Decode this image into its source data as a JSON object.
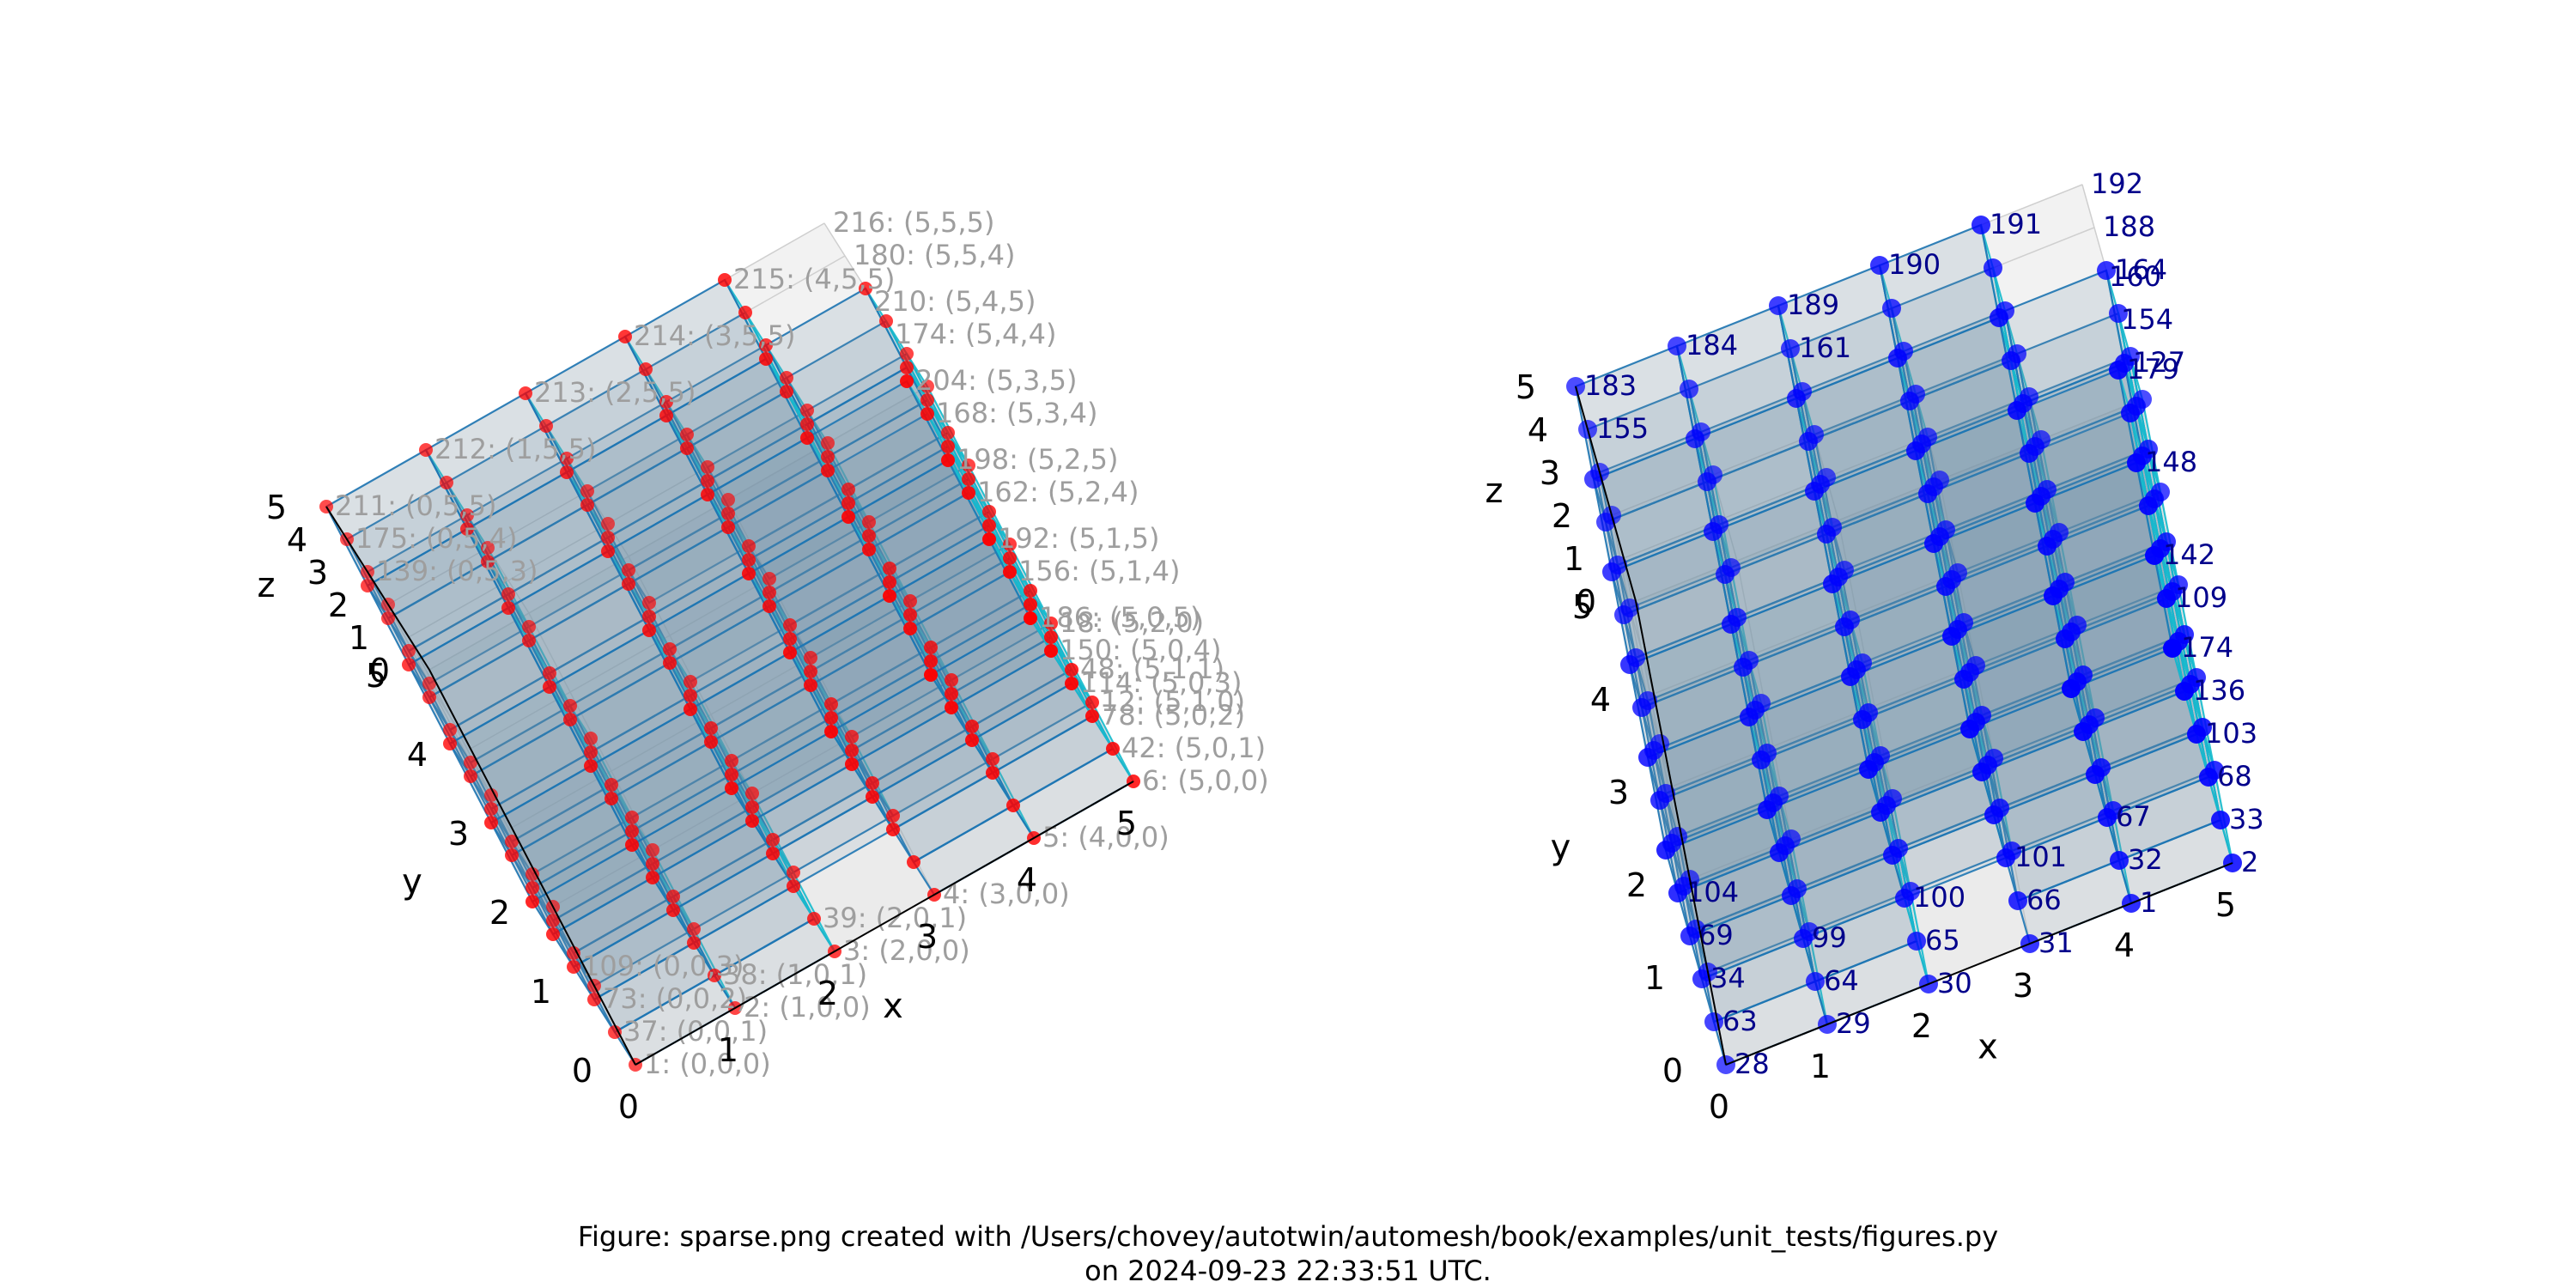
{
  "caption": {
    "line1": "Figure: sparse.png created with /Users/chovey/autotwin/automesh/book/examples/unit_tests/figures.py",
    "line2": "on 2024-09-23 22:33:51 UTC."
  },
  "colors": {
    "point_left": "#ff0000",
    "point_right": "#0000ff",
    "label_left": "#9e9e9e",
    "label_right": "#00008b",
    "cell_edge_dark": "#1f77b4",
    "cell_edge_light": "#17becf",
    "cell_face": "#6f8fa8"
  },
  "chart_data": [
    {
      "type": "scatter3d",
      "name_hint": "left",
      "xlabel": "x",
      "ylabel": "y",
      "zlabel": "z",
      "xlim": [
        0,
        5
      ],
      "ylim": [
        0,
        5
      ],
      "zlim": [
        0,
        5
      ],
      "ticks": {
        "x": [
          "0",
          "1",
          "2",
          "3",
          "4",
          "5"
        ],
        "y": [
          "0",
          "1",
          "2",
          "3",
          "4",
          "5"
        ],
        "z": [
          "0",
          "1",
          "2",
          "3",
          "4",
          "5"
        ]
      },
      "annotations": [
        {
          "text": "1: (0,0,0)",
          "xyz": [
            0,
            0,
            0
          ]
        },
        {
          "text": "2: (1,0,0)",
          "xyz": [
            1,
            0,
            0
          ]
        },
        {
          "text": "3: (2,0,0)",
          "xyz": [
            2,
            0,
            0
          ]
        },
        {
          "text": "4: (3,0,0)",
          "xyz": [
            3,
            0,
            0
          ]
        },
        {
          "text": "5: (4,0,0)",
          "xyz": [
            4,
            0,
            0
          ]
        },
        {
          "text": "6: (5,0,0)",
          "xyz": [
            5,
            0,
            0
          ]
        },
        {
          "text": "12: (5,1,0)",
          "xyz": [
            5,
            1,
            0
          ]
        },
        {
          "text": "18: (5,2,0)",
          "xyz": [
            5,
            2,
            0
          ]
        },
        {
          "text": "37: (0,0,1)",
          "xyz": [
            0,
            0,
            1
          ]
        },
        {
          "text": "38: (1,0,1)",
          "xyz": [
            1,
            0,
            1
          ]
        },
        {
          "text": "39: (2,0,1)",
          "xyz": [
            2,
            0,
            1
          ]
        },
        {
          "text": "42: (5,0,1)",
          "xyz": [
            5,
            0,
            1
          ]
        },
        {
          "text": "48: (5,1,1)",
          "xyz": [
            5,
            1,
            1
          ]
        },
        {
          "text": "73: (0,0,2)",
          "xyz": [
            0,
            0,
            2
          ]
        },
        {
          "text": "78: (5,0,2)",
          "xyz": [
            5,
            0,
            2
          ]
        },
        {
          "text": "109: (0,0,3)",
          "xyz": [
            0,
            0,
            3
          ]
        },
        {
          "text": "114: (5,0,3)",
          "xyz": [
            5,
            0,
            3
          ]
        },
        {
          "text": "150: (5,0,4)",
          "xyz": [
            5,
            0,
            4
          ]
        },
        {
          "text": "186: (5,0,5)",
          "xyz": [
            5,
            0,
            5
          ]
        },
        {
          "text": "156: (5,1,4)",
          "xyz": [
            5,
            1,
            4
          ]
        },
        {
          "text": "192: (5,1,5)",
          "xyz": [
            5,
            1,
            5
          ]
        },
        {
          "text": "198: (5,2,5)",
          "xyz": [
            5,
            2,
            5
          ]
        },
        {
          "text": "162: (5,2,4)",
          "xyz": [
            5,
            2,
            4
          ]
        },
        {
          "text": "168: (5,3,4)",
          "xyz": [
            5,
            3,
            4
          ]
        },
        {
          "text": "204: (5,3,5)",
          "xyz": [
            5,
            3,
            5
          ]
        },
        {
          "text": "174: (5,4,4)",
          "xyz": [
            5,
            4,
            4
          ]
        },
        {
          "text": "210: (5,4,5)",
          "xyz": [
            5,
            4,
            5
          ]
        },
        {
          "text": "180: (5,5,4)",
          "xyz": [
            5,
            5,
            4
          ]
        },
        {
          "text": "216: (5,5,5)",
          "xyz": [
            5,
            5,
            5
          ]
        },
        {
          "text": "215: (4,5,5)",
          "xyz": [
            4,
            5,
            5
          ]
        },
        {
          "text": "214: (3,5,5)",
          "xyz": [
            3,
            5,
            5
          ]
        },
        {
          "text": "213: (2,5,5)",
          "xyz": [
            2,
            5,
            5
          ]
        },
        {
          "text": "212: (1,5,5)",
          "xyz": [
            1,
            5,
            5
          ]
        },
        {
          "text": "211: (0,5,5)",
          "xyz": [
            0,
            5,
            5
          ]
        },
        {
          "text": "175: (0,5,4)",
          "xyz": [
            0,
            5,
            4
          ]
        },
        {
          "text": "139: (0,5,3)",
          "xyz": [
            0,
            5,
            3
          ]
        }
      ]
    },
    {
      "type": "scatter3d",
      "name_hint": "right",
      "xlabel": "x",
      "ylabel": "y",
      "zlabel": "z",
      "xlim": [
        0,
        5
      ],
      "ylim": [
        0,
        5
      ],
      "zlim": [
        0,
        5
      ],
      "ticks": {
        "x": [
          "0",
          "1",
          "2",
          "3",
          "4",
          "5"
        ],
        "y": [
          "0",
          "1",
          "2",
          "3",
          "4",
          "5"
        ],
        "z": [
          "0",
          "1",
          "2",
          "3",
          "4",
          "5"
        ]
      },
      "annotations": [
        {
          "text": "28",
          "xyz": [
            0,
            0,
            0
          ]
        },
        {
          "text": "29",
          "xyz": [
            1,
            0,
            0
          ]
        },
        {
          "text": "30",
          "xyz": [
            2,
            0,
            0
          ]
        },
        {
          "text": "31",
          "xyz": [
            3,
            0,
            0
          ]
        },
        {
          "text": "1",
          "xyz": [
            4,
            0,
            0
          ]
        },
        {
          "text": "2",
          "xyz": [
            5,
            0,
            0
          ]
        },
        {
          "text": "63",
          "xyz": [
            0,
            0,
            1
          ]
        },
        {
          "text": "64",
          "xyz": [
            1,
            0,
            1
          ]
        },
        {
          "text": "65",
          "xyz": [
            2,
            0,
            1
          ]
        },
        {
          "text": "66",
          "xyz": [
            3,
            0,
            1
          ]
        },
        {
          "text": "32",
          "xyz": [
            4,
            0,
            1
          ]
        },
        {
          "text": "33",
          "xyz": [
            5,
            0,
            1
          ]
        },
        {
          "text": "34",
          "xyz": [
            0,
            0,
            2
          ]
        },
        {
          "text": "99",
          "xyz": [
            1,
            0,
            2
          ]
        },
        {
          "text": "100",
          "xyz": [
            2,
            0,
            2
          ]
        },
        {
          "text": "101",
          "xyz": [
            3,
            0,
            2
          ]
        },
        {
          "text": "67",
          "xyz": [
            4,
            0,
            2
          ]
        },
        {
          "text": "68",
          "xyz": [
            5,
            0,
            2
          ]
        },
        {
          "text": "69",
          "xyz": [
            0,
            0,
            3
          ]
        },
        {
          "text": "104",
          "xyz": [
            0,
            0,
            4
          ]
        },
        {
          "text": "103",
          "xyz": [
            5,
            0,
            3
          ]
        },
        {
          "text": "136",
          "xyz": [
            5,
            0,
            4
          ]
        },
        {
          "text": "109",
          "xyz": [
            5,
            1,
            4
          ]
        },
        {
          "text": "174",
          "xyz": [
            5,
            0,
            5
          ]
        },
        {
          "text": "142",
          "xyz": [
            5,
            1,
            5
          ]
        },
        {
          "text": "148",
          "xyz": [
            5,
            2,
            5
          ]
        },
        {
          "text": "179",
          "xyz": [
            5,
            3,
            5
          ]
        },
        {
          "text": "154",
          "xyz": [
            5,
            4,
            4
          ]
        },
        {
          "text": "127",
          "xyz": [
            5,
            4,
            3
          ]
        },
        {
          "text": "160",
          "xyz": [
            5,
            4,
            5
          ]
        },
        {
          "text": "188",
          "xyz": [
            5,
            5,
            4
          ]
        },
        {
          "text": "164",
          "xyz": [
            5,
            5,
            3
          ]
        },
        {
          "text": "192",
          "xyz": [
            5,
            5,
            5
          ]
        },
        {
          "text": "191",
          "xyz": [
            4,
            5,
            5
          ]
        },
        {
          "text": "190",
          "xyz": [
            3,
            5,
            5
          ]
        },
        {
          "text": "189",
          "xyz": [
            2,
            5,
            5
          ]
        },
        {
          "text": "161",
          "xyz": [
            2,
            5,
            4
          ]
        },
        {
          "text": "184",
          "xyz": [
            1,
            5,
            5
          ]
        },
        {
          "text": "183",
          "xyz": [
            0,
            5,
            5
          ]
        },
        {
          "text": "155",
          "xyz": [
            0,
            5,
            4
          ]
        }
      ]
    }
  ]
}
